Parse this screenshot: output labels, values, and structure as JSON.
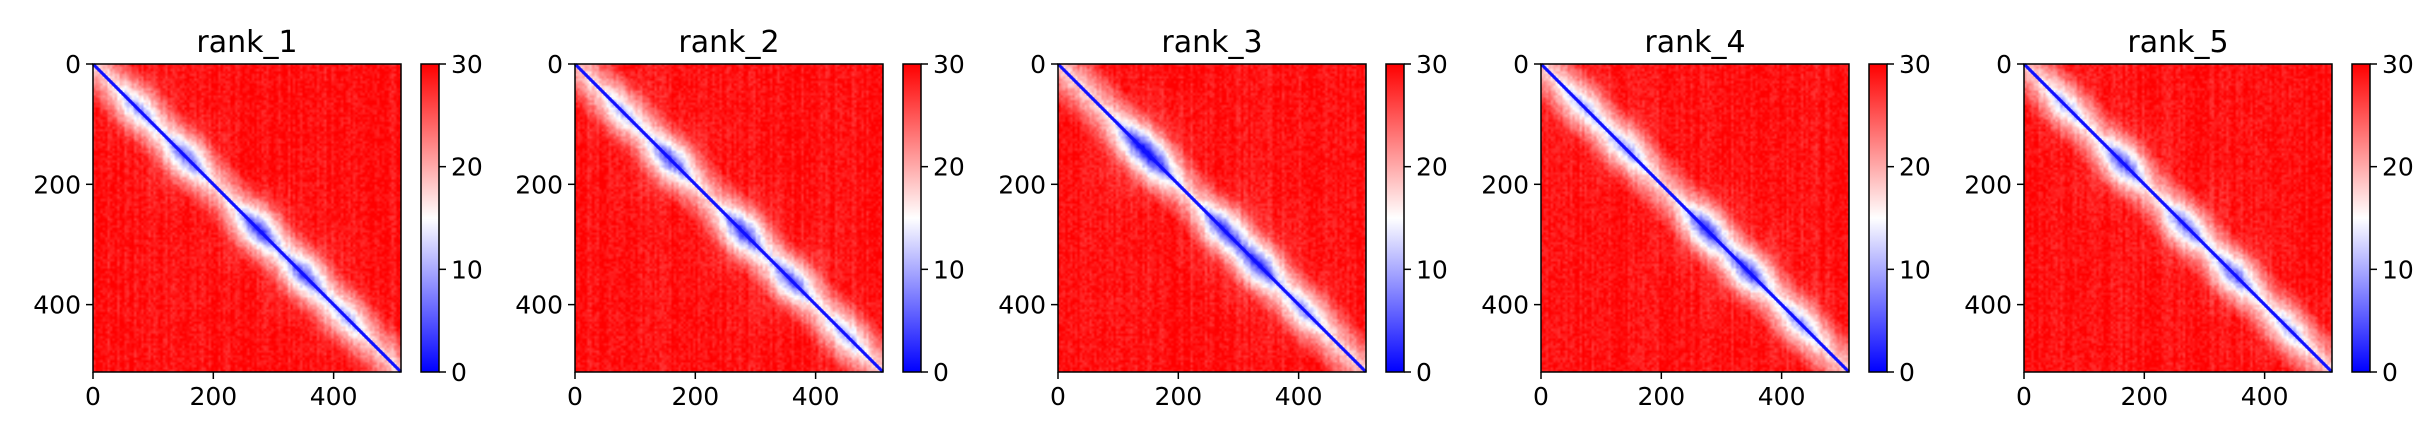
{
  "chart_data": [
    {
      "type": "heatmap",
      "title": "rank_1",
      "axis_ticks": [
        0,
        200,
        400
      ],
      "size": 512,
      "colorbar": {
        "min": 0,
        "max": 30,
        "ticks": [
          0,
          10,
          20,
          30
        ],
        "colors": [
          "#0000ff",
          "#ffffff",
          "#ff0000"
        ]
      },
      "diagonal_blobs": [
        [
          75,
          0.6
        ],
        [
          155,
          0.8
        ],
        [
          275,
          1.0
        ],
        [
          350,
          0.9
        ],
        [
          420,
          0.5
        ]
      ]
    },
    {
      "type": "heatmap",
      "title": "rank_2",
      "axis_ticks": [
        0,
        200,
        400
      ],
      "size": 512,
      "colorbar": {
        "min": 0,
        "max": 30,
        "ticks": [
          0,
          10,
          20,
          30
        ],
        "colors": [
          "#0000ff",
          "#ffffff",
          "#ff0000"
        ]
      },
      "diagonal_blobs": [
        [
          80,
          0.5
        ],
        [
          160,
          0.9
        ],
        [
          280,
          1.0
        ],
        [
          360,
          0.9
        ],
        [
          450,
          0.5
        ]
      ]
    },
    {
      "type": "heatmap",
      "title": "rank_3",
      "axis_ticks": [
        0,
        200,
        400
      ],
      "size": 512,
      "colorbar": {
        "min": 0,
        "max": 30,
        "ticks": [
          0,
          10,
          20,
          30
        ],
        "colors": [
          "#0000ff",
          "#ffffff",
          "#ff0000"
        ]
      },
      "diagonal_blobs": [
        [
          130,
          0.8
        ],
        [
          165,
          0.8
        ],
        [
          275,
          1.0
        ],
        [
          335,
          1.0
        ],
        [
          410,
          0.6
        ]
      ]
    },
    {
      "type": "heatmap",
      "title": "rank_4",
      "axis_ticks": [
        0,
        200,
        400
      ],
      "size": 512,
      "colorbar": {
        "min": 0,
        "max": 30,
        "ticks": [
          0,
          10,
          20,
          30
        ],
        "colors": [
          "#0000ff",
          "#ffffff",
          "#ff0000"
        ]
      },
      "diagonal_blobs": [
        [
          70,
          0.5
        ],
        [
          140,
          0.6
        ],
        [
          275,
          1.0
        ],
        [
          345,
          1.0
        ],
        [
          430,
          0.6
        ]
      ]
    },
    {
      "type": "heatmap",
      "title": "rank_5",
      "axis_ticks": [
        0,
        200,
        400
      ],
      "size": 512,
      "colorbar": {
        "min": 0,
        "max": 30,
        "ticks": [
          0,
          10,
          20,
          30
        ],
        "colors": [
          "#0000ff",
          "#ffffff",
          "#ff0000"
        ]
      },
      "diagonal_blobs": [
        [
          70,
          0.5
        ],
        [
          165,
          0.9
        ],
        [
          270,
          0.8
        ],
        [
          350,
          0.8
        ],
        [
          440,
          0.5
        ]
      ]
    }
  ]
}
